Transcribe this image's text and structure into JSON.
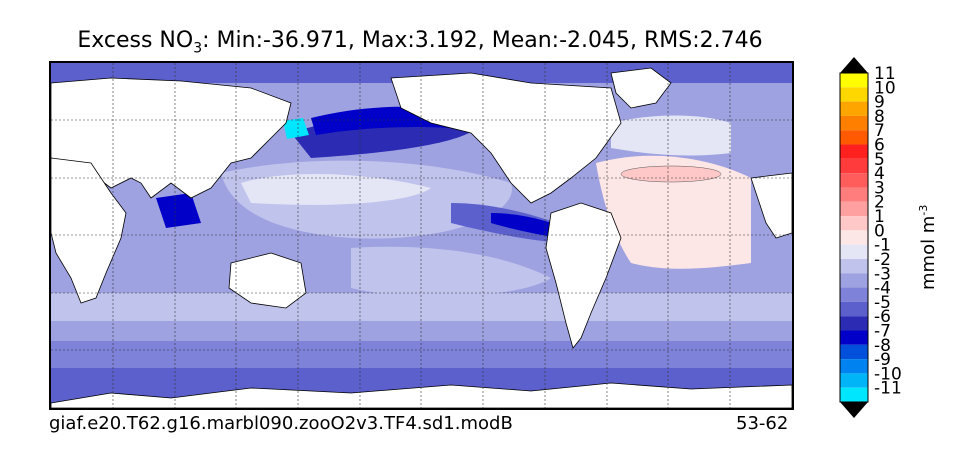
{
  "title": {
    "prefix": "Excess NO",
    "subscript": "3",
    "rest": ": Min:-36.971, Max:3.192, Mean:-2.045, RMS:2.746"
  },
  "footer": {
    "run_name": "giaf.e20.T62.g16.marbl090.zooO2v3.TF4.sd1.modB",
    "years": "53-62"
  },
  "colorbar": {
    "units_base": "mmol m",
    "units_exp": "-3",
    "levels": [
      {
        "label": "11",
        "color": "#ffff00"
      },
      {
        "label": "10",
        "color": "#ffd700"
      },
      {
        "label": "9",
        "color": "#ffa500"
      },
      {
        "label": "8",
        "color": "#ff7f00"
      },
      {
        "label": "7",
        "color": "#ff5a00"
      },
      {
        "label": "6",
        "color": "#ff2020"
      },
      {
        "label": "5",
        "color": "#ff3b3b"
      },
      {
        "label": "4",
        "color": "#ff5c5c"
      },
      {
        "label": "3",
        "color": "#ff7d7d"
      },
      {
        "label": "2",
        "color": "#ffa0a0"
      },
      {
        "label": "1",
        "color": "#ffc8c8"
      },
      {
        "label": "0",
        "color": "#fde6e6"
      },
      {
        "label": "-1",
        "color": "#e4e6f6"
      },
      {
        "label": "-2",
        "color": "#c0c3ec"
      },
      {
        "label": "-3",
        "color": "#9ea2e0"
      },
      {
        "label": "-4",
        "color": "#7e82d8"
      },
      {
        "label": "-5",
        "color": "#5c60cc"
      },
      {
        "label": "-6",
        "color": "#2b2bb4"
      },
      {
        "label": "-7",
        "color": "#0000c8"
      },
      {
        "label": "-8",
        "color": "#0050dc"
      },
      {
        "label": "-9",
        "color": "#0082f0"
      },
      {
        "label": "-10",
        "color": "#00b4f8"
      },
      {
        "label": "-11",
        "color": "#00e6ff"
      }
    ],
    "over_color": "#000000",
    "under_color": "#000000"
  },
  "map": {
    "projection": "global lat-lon",
    "gridlines": true,
    "continent_fill": "#ffffff"
  }
}
